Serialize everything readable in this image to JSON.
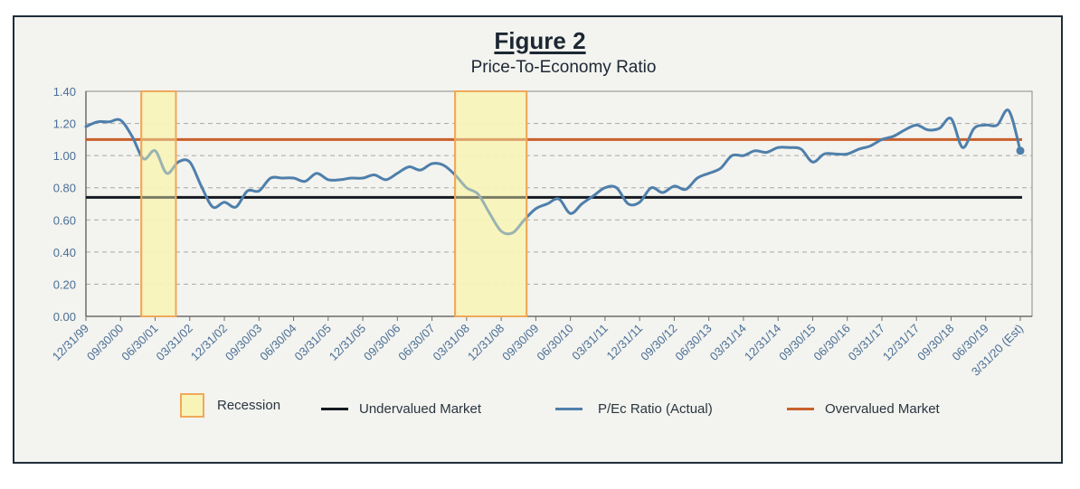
{
  "figure_label": "Figure 2",
  "colors": {
    "series": "#4e7fab",
    "overvalued": "#c8602a",
    "undervalued": "#141b22",
    "recession_fill": "#f8f4b8",
    "recession_stroke": "#f0a95a",
    "axis_text": "#4a6f96",
    "grid": "#a8a8a8",
    "frame": "#1f2d3a",
    "background": "#f3f3ef"
  },
  "chart_data": {
    "type": "line",
    "title": "Figure 2",
    "subtitle": "Price-To-Economy Ratio",
    "xlabel": "",
    "ylabel": "",
    "ylim": [
      0,
      1.4
    ],
    "yticks": [
      "0.00",
      "0.20",
      "0.40",
      "0.60",
      "0.80",
      "1.00",
      "1.20",
      "1.40"
    ],
    "ytick_values": [
      0,
      0.2,
      0.4,
      0.6,
      0.8,
      1.0,
      1.2,
      1.4
    ],
    "grid": "horizontal dashed",
    "x_tick_labels": [
      "12/31/99",
      "09/30/00",
      "06/30/01",
      "03/31/02",
      "12/31/02",
      "09/30/03",
      "06/30/04",
      "03/31/05",
      "12/31/05",
      "09/30/06",
      "06/30/07",
      "03/31/08",
      "12/31/08",
      "09/30/09",
      "06/30/10",
      "03/31/11",
      "12/31/11",
      "09/30/12",
      "06/30/13",
      "03/31/14",
      "12/31/14",
      "09/30/15",
      "06/30/16",
      "03/31/17",
      "12/31/17",
      "09/30/18",
      "06/30/19",
      "3/31/20 (Est)"
    ],
    "x_tick_quarter_index": [
      0,
      3,
      6,
      9,
      12,
      15,
      18,
      21,
      24,
      27,
      30,
      33,
      36,
      39,
      42,
      45,
      48,
      51,
      54,
      57,
      60,
      63,
      66,
      69,
      72,
      75,
      78,
      81
    ],
    "x_start": "12/31/99",
    "x_end": "3/31/20 (Est)",
    "x_frequency": "quarterly",
    "series": [
      {
        "name": "P/Ec Ratio (Actual)",
        "values": [
          1.18,
          1.21,
          1.21,
          1.22,
          1.12,
          0.98,
          1.03,
          0.89,
          0.96,
          0.96,
          0.81,
          0.68,
          0.71,
          0.68,
          0.78,
          0.78,
          0.86,
          0.86,
          0.86,
          0.84,
          0.89,
          0.85,
          0.85,
          0.86,
          0.86,
          0.88,
          0.85,
          0.89,
          0.93,
          0.91,
          0.95,
          0.94,
          0.88,
          0.8,
          0.76,
          0.64,
          0.53,
          0.52,
          0.6,
          0.67,
          0.7,
          0.73,
          0.64,
          0.7,
          0.75,
          0.8,
          0.8,
          0.7,
          0.71,
          0.8,
          0.77,
          0.81,
          0.79,
          0.86,
          0.89,
          0.92,
          1.0,
          1.0,
          1.03,
          1.02,
          1.05,
          1.05,
          1.04,
          0.96,
          1.01,
          1.01,
          1.01,
          1.04,
          1.06,
          1.1,
          1.12,
          1.16,
          1.19,
          1.16,
          1.17,
          1.23,
          1.05,
          1.17,
          1.19,
          1.19,
          1.28,
          1.03
        ],
        "last_point_marker": true
      },
      {
        "name": "Undervalued Market",
        "constant": 0.74
      },
      {
        "name": "Overvalued Market",
        "constant": 1.1
      }
    ],
    "recessions": [
      {
        "start_quarter_index": 4.8,
        "end_quarter_index": 7.8
      },
      {
        "start_quarter_index": 32,
        "end_quarter_index": 38.2
      }
    ],
    "legend": {
      "placement": "bottom",
      "entries": [
        "Recession",
        "Undervalued Market",
        "P/Ec Ratio (Actual)",
        "Overvalued Market"
      ]
    }
  },
  "legend": {
    "recession": "Recession",
    "undervalued": "Undervalued Market",
    "series": "P/Ec Ratio (Actual)",
    "overvalued": "Overvalued Market"
  }
}
